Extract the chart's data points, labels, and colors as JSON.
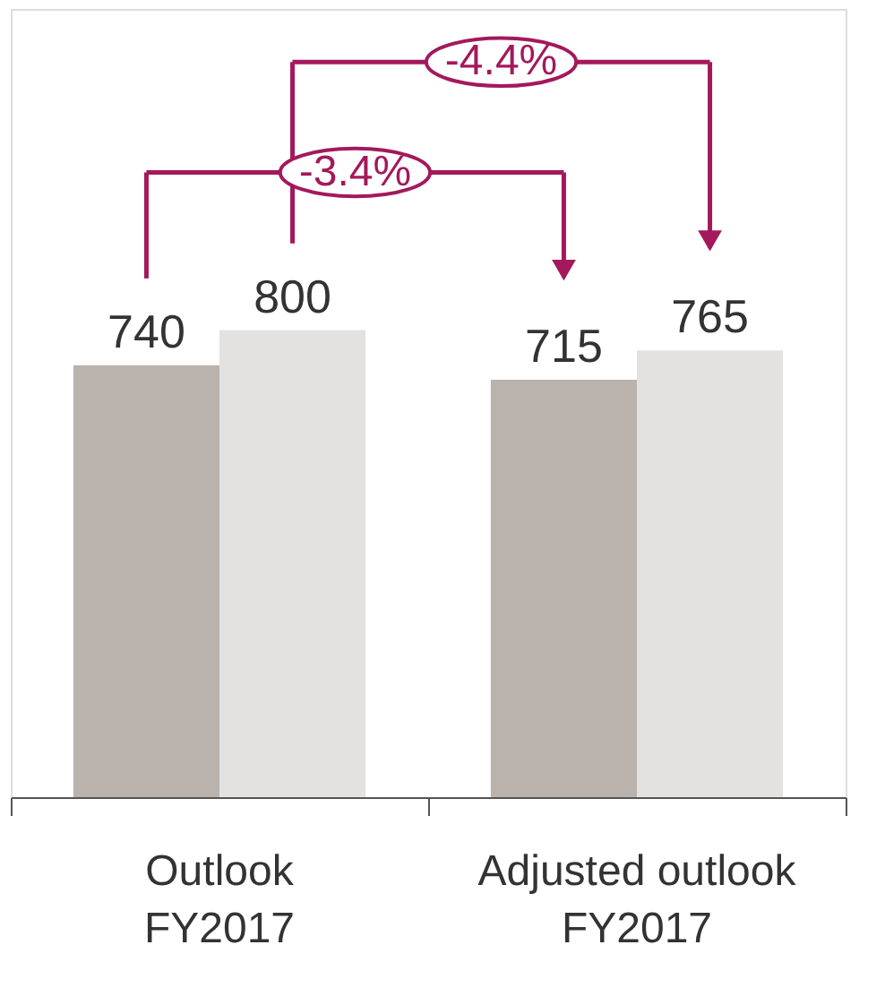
{
  "chart_data": {
    "type": "bar",
    "categories": [
      "Outlook FY2017",
      "Adjusted outlook FY2017"
    ],
    "series": [
      {
        "color": "#bab2ac",
        "values": [
          740,
          715
        ]
      },
      {
        "color": "#e4e2e1",
        "values": [
          800,
          765
        ]
      }
    ],
    "ylim": [
      0,
      1350
    ],
    "data_labels": true,
    "tick_labels": "x",
    "grid": false,
    "annotations": [
      "-3.4%",
      "-4.4%"
    ]
  }
}
